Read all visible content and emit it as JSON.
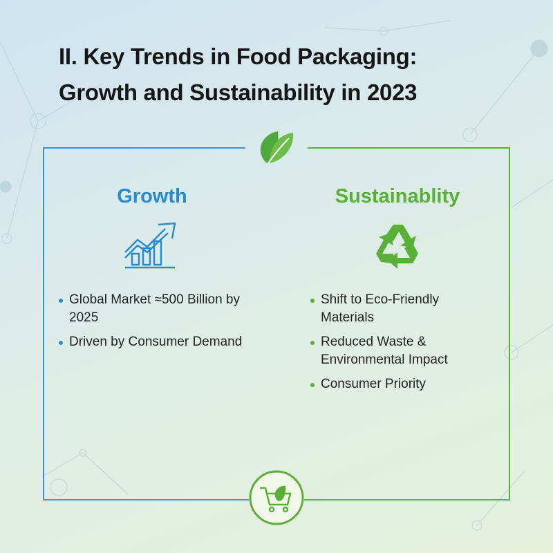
{
  "title": [
    "II. Key Trends in Food Packaging:",
    "Growth and Sustainability in 2023"
  ],
  "columns": [
    {
      "heading": "Growth",
      "bullets": [
        "Global Market ≈500 Billion by 2025",
        "Driven by Consumer Demand"
      ]
    },
    {
      "heading": "Sustainablity",
      "bullets": [
        "Shift to Eco-Friendly Materials",
        "Reduced Waste & Environmental Impact",
        "Consumer Priority"
      ]
    }
  ]
}
